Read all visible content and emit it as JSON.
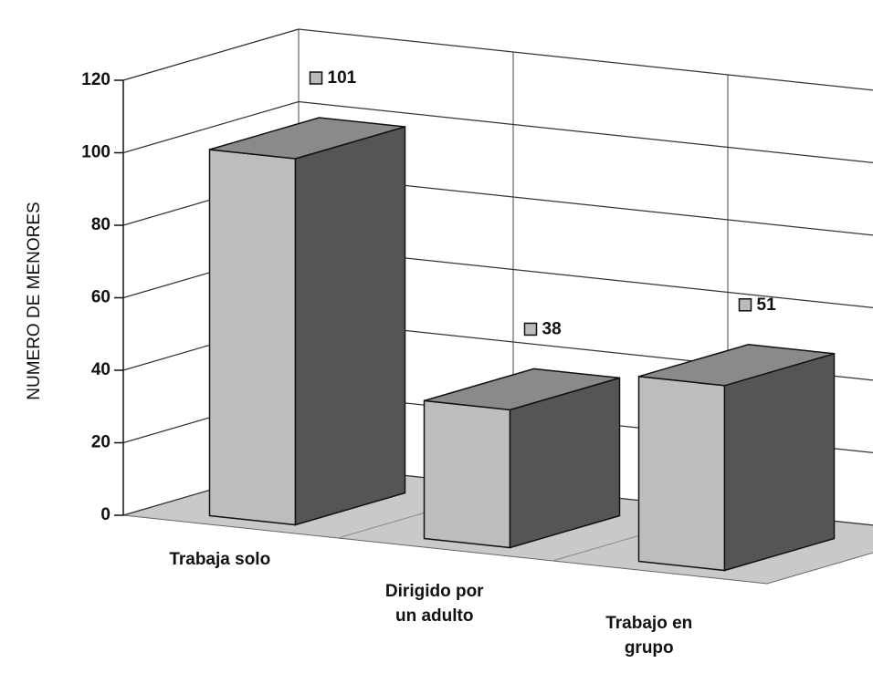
{
  "chart_data": {
    "type": "bar3d",
    "y_label": "NUMERO DE MENORES",
    "categories": [
      "Trabaja solo",
      "Dirigido por un adulto",
      "Trabajo en grupo"
    ],
    "values": [
      101,
      38,
      51
    ],
    "color": "#bdbdbd",
    "ylim": [
      0,
      120
    ],
    "yticks": [
      0,
      20,
      40,
      60,
      80,
      100,
      120
    ],
    "grid": true
  }
}
